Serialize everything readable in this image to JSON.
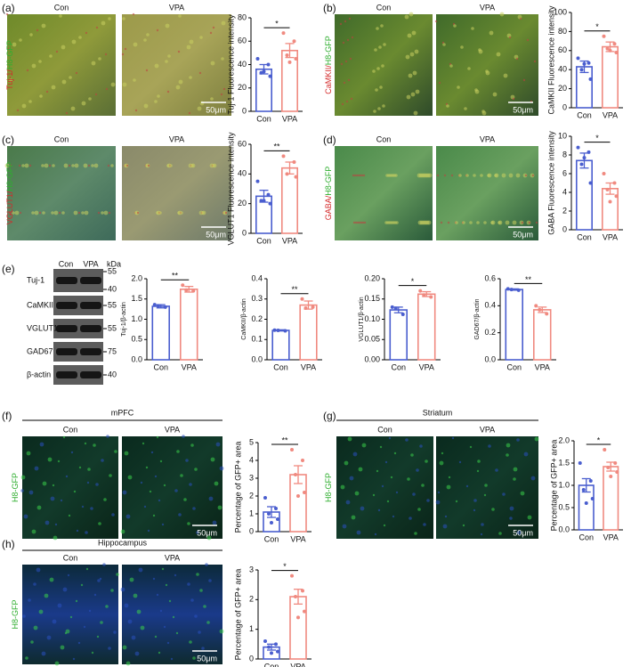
{
  "panels": [
    {
      "label": "(a)",
      "images": [
        "Con",
        "VPA"
      ],
      "stain": [
        {
          "text": "Tuj-1",
          "color": "#d42a2a"
        },
        {
          "text": "/",
          "color": "#d42a2a"
        },
        {
          "text": "H8-GFP",
          "color": "#2fae2f"
        }
      ],
      "scale": "50μm"
    },
    {
      "label": "(b)",
      "images": [
        "Con",
        "VPA"
      ],
      "stain": [
        {
          "text": "CaMKII",
          "color": "#d42a2a"
        },
        {
          "text": "/",
          "color": "#d42a2a"
        },
        {
          "text": "H8-GFP",
          "color": "#2fae2f"
        }
      ],
      "scale": "50μm"
    },
    {
      "label": "(c)",
      "images": [
        "Con",
        "VPA"
      ],
      "stain": [
        {
          "text": "VGLUT1",
          "color": "#d42a2a"
        },
        {
          "text": "/",
          "color": "#d42a2a"
        },
        {
          "text": "H8-GFP",
          "color": "#2fae2f"
        }
      ],
      "scale": "50μm"
    },
    {
      "label": "(d)",
      "images": [
        "Con",
        "VPA"
      ],
      "stain": [
        {
          "text": "GABA",
          "color": "#d42a2a"
        },
        {
          "text": "/",
          "color": "#d42a2a"
        },
        {
          "text": "H8-GFP",
          "color": "#2fae2f"
        }
      ],
      "scale": "50μm"
    },
    {
      "label": "(e)",
      "lanes": [
        "Con",
        "VPA"
      ],
      "unit": "kDa",
      "bands": [
        {
          "name": "Tuj-1",
          "markers": [
            "55",
            "40"
          ]
        },
        {
          "name": "CaMKII",
          "markers": [
            "55"
          ]
        },
        {
          "name": "VGLUT1",
          "markers": [
            "55"
          ]
        },
        {
          "name": "GAD67",
          "markers": [
            "75"
          ]
        },
        {
          "name": "β-actin",
          "markers": [
            "40"
          ]
        }
      ]
    },
    {
      "label": "(f)",
      "region": "mPFC",
      "images": [
        "Con",
        "VPA"
      ],
      "stain": [
        {
          "text": "H8-GFP",
          "color": "#2fae2f"
        }
      ],
      "scale": "50μm"
    },
    {
      "label": "(g)",
      "region": "Striatum",
      "images": [
        "Con",
        "VPA"
      ],
      "stain": [
        {
          "text": "H8-GFP",
          "color": "#2fae2f"
        }
      ],
      "scale": "50μm"
    },
    {
      "label": "(h)",
      "region": "Hippocampus",
      "images": [
        "Con",
        "VPA"
      ],
      "stain": [
        {
          "text": "H8-GFP",
          "color": "#2fae2f"
        }
      ],
      "scale": "50μm"
    }
  ],
  "chart_data": [
    {
      "type": "bar",
      "ylabel": "Tuj-1 Fluorescence intensity",
      "categories": [
        "Con",
        "VPA"
      ],
      "colors": [
        "#4a5ecf",
        "#f08a80"
      ],
      "values": [
        36,
        52
      ],
      "errors": [
        4,
        6
      ],
      "points": [
        [
          45,
          40,
          33,
          30,
          34
        ],
        [
          67,
          60,
          48,
          45,
          42
        ]
      ],
      "significance": "*",
      "ylim": [
        0,
        80
      ],
      "yticks": [
        0,
        20,
        40,
        60,
        80
      ]
    },
    {
      "type": "bar",
      "ylabel": "CaMKII Fluorescence intensity",
      "categories": [
        "Con",
        "VPA"
      ],
      "colors": [
        "#4a5ecf",
        "#f08a80"
      ],
      "values": [
        43,
        64
      ],
      "errors": [
        6,
        5
      ],
      "points": [
        [
          52,
          47,
          40,
          30,
          46
        ],
        [
          75,
          67,
          62,
          58,
          60
        ]
      ],
      "significance": "*",
      "ylim": [
        0,
        100
      ],
      "yticks": [
        0,
        20,
        40,
        60,
        80,
        100
      ]
    },
    {
      "type": "bar",
      "ylabel": "VGLUT1  Fluorescence intensity",
      "categories": [
        "Con",
        "VPA"
      ],
      "colors": [
        "#4a5ecf",
        "#f08a80"
      ],
      "values": [
        25,
        44
      ],
      "errors": [
        4,
        4
      ],
      "points": [
        [
          35,
          26,
          22,
          20,
          22
        ],
        [
          52,
          48,
          40,
          38
        ]
      ],
      "significance": "**",
      "ylim": [
        0,
        60
      ],
      "yticks": [
        0,
        20,
        40,
        60
      ]
    },
    {
      "type": "bar",
      "ylabel": "GABA Fluorescence intensity",
      "categories": [
        "Con",
        "VPA"
      ],
      "colors": [
        "#4a5ecf",
        "#f08a80"
      ],
      "values": [
        7.4,
        4.4
      ],
      "errors": [
        0.8,
        0.6
      ],
      "points": [
        [
          8.8,
          8.3,
          7.0,
          5.0,
          7.7
        ],
        [
          6.0,
          5.0,
          4.3,
          3.6,
          3.0
        ]
      ],
      "significance": "*",
      "ylim": [
        0,
        10
      ],
      "yticks": [
        0,
        2,
        4,
        6,
        8,
        10
      ]
    },
    {
      "type": "bar",
      "ylabel": "Tuj-1/β-actin",
      "categories": [
        "Con",
        "VPA"
      ],
      "colors": [
        "#4a5ecf",
        "#f08a80"
      ],
      "values": [
        1.32,
        1.74
      ],
      "errors": [
        0.04,
        0.07
      ],
      "points": [
        [
          1.36,
          1.3,
          1.33
        ],
        [
          1.84,
          1.7,
          1.72
        ]
      ],
      "significance": "**",
      "ylim": [
        0,
        2
      ],
      "yticks": [
        {
          "value": 0,
          "label": "0.0"
        },
        0.5,
        {
          "value": 1,
          "label": "1.0"
        },
        1.5,
        {
          "value": 2,
          "label": "2.0"
        }
      ]
    },
    {
      "type": "bar",
      "ylabel": "CaMKII/β-actin",
      "categories": [
        "Con",
        "VPA"
      ],
      "colors": [
        "#4a5ecf",
        "#f08a80"
      ],
      "values": [
        0.145,
        0.27
      ],
      "errors": [
        0.003,
        0.02
      ],
      "points": [
        [
          0.146,
          0.143,
          0.145
        ],
        [
          0.3,
          0.26,
          0.255
        ]
      ],
      "significance": "**",
      "ylim": [
        0,
        0.4
      ],
      "yticks": [
        {
          "value": 0,
          "label": "0.0"
        },
        0.1,
        0.2,
        0.3,
        0.4
      ]
    },
    {
      "type": "bar",
      "ylabel": "VGLUT1/β-actin",
      "categories": [
        "Con",
        "VPA"
      ],
      "colors": [
        "#4a5ecf",
        "#f08a80"
      ],
      "values": [
        0.123,
        0.162
      ],
      "errors": [
        0.007,
        0.006
      ],
      "points": [
        [
          0.13,
          0.112,
          0.127
        ],
        [
          0.17,
          0.155,
          0.16
        ]
      ],
      "significance": "*",
      "ylim": [
        0,
        0.2
      ],
      "yticks": [
        {
          "value": 0,
          "label": "0.00"
        },
        0.05,
        {
          "value": 0.1,
          "label": "0.10"
        },
        0.15,
        {
          "value": 0.2,
          "label": "0.20"
        }
      ]
    },
    {
      "type": "bar",
      "ylabel": "GAD67/β-actin",
      "categories": [
        "Con",
        "VPA"
      ],
      "colors": [
        "#4a5ecf",
        "#f08a80"
      ],
      "values": [
        0.52,
        0.37
      ],
      "errors": [
        0.005,
        0.02
      ],
      "points": [
        [
          0.525,
          0.515,
          0.52
        ],
        [
          0.4,
          0.34,
          0.37
        ]
      ],
      "significance": "**",
      "ylim": [
        0,
        0.6
      ],
      "yticks": [
        {
          "value": 0,
          "label": "0.0"
        },
        0.2,
        0.4,
        0.6
      ]
    },
    {
      "type": "bar",
      "ylabel": "Percentage of GFP+ area",
      "categories": [
        "Con",
        "VPA"
      ],
      "colors": [
        "#4a5ecf",
        "#f08a80"
      ],
      "values": [
        1.1,
        3.2
      ],
      "errors": [
        0.3,
        0.5
      ],
      "points": [
        [
          1.9,
          1.3,
          1.0,
          0.7,
          0.5
        ],
        [
          4.6,
          4.0,
          3.2,
          2.2,
          2.0
        ]
      ],
      "significance": "**",
      "ylim": [
        0,
        5
      ],
      "yticks": [
        0,
        1,
        2,
        3,
        4,
        5
      ]
    },
    {
      "type": "bar",
      "ylabel": "Percentage of GFP+ area",
      "categories": [
        "Con",
        "VPA"
      ],
      "colors": [
        "#4a5ecf",
        "#f08a80"
      ],
      "values": [
        1.0,
        1.42
      ],
      "errors": [
        0.15,
        0.1
      ],
      "points": [
        [
          1.5,
          1.1,
          0.9,
          0.7,
          0.6
        ],
        [
          1.8,
          1.5,
          1.4,
          1.3,
          1.2
        ]
      ],
      "significance": "*",
      "ylim": [
        0,
        2
      ],
      "yticks": [
        {
          "value": 0,
          "label": "0.0"
        },
        0.5,
        {
          "value": 1,
          "label": "1.0"
        },
        1.5,
        {
          "value": 2,
          "label": "2.0"
        }
      ]
    },
    {
      "type": "bar",
      "ylabel": "Percentage of GFP+ area",
      "categories": [
        "Con",
        "VPA"
      ],
      "colors": [
        "#4a5ecf",
        "#f08a80"
      ],
      "values": [
        0.4,
        2.1
      ],
      "errors": [
        0.1,
        0.25
      ],
      "points": [
        [
          0.6,
          0.5,
          0.4,
          0.25,
          0.2
        ],
        [
          2.8,
          2.3,
          2.1,
          1.6,
          1.4
        ]
      ],
      "significance": "*",
      "ylim": [
        0,
        3
      ],
      "yticks": [
        0,
        1,
        2,
        3
      ]
    }
  ]
}
